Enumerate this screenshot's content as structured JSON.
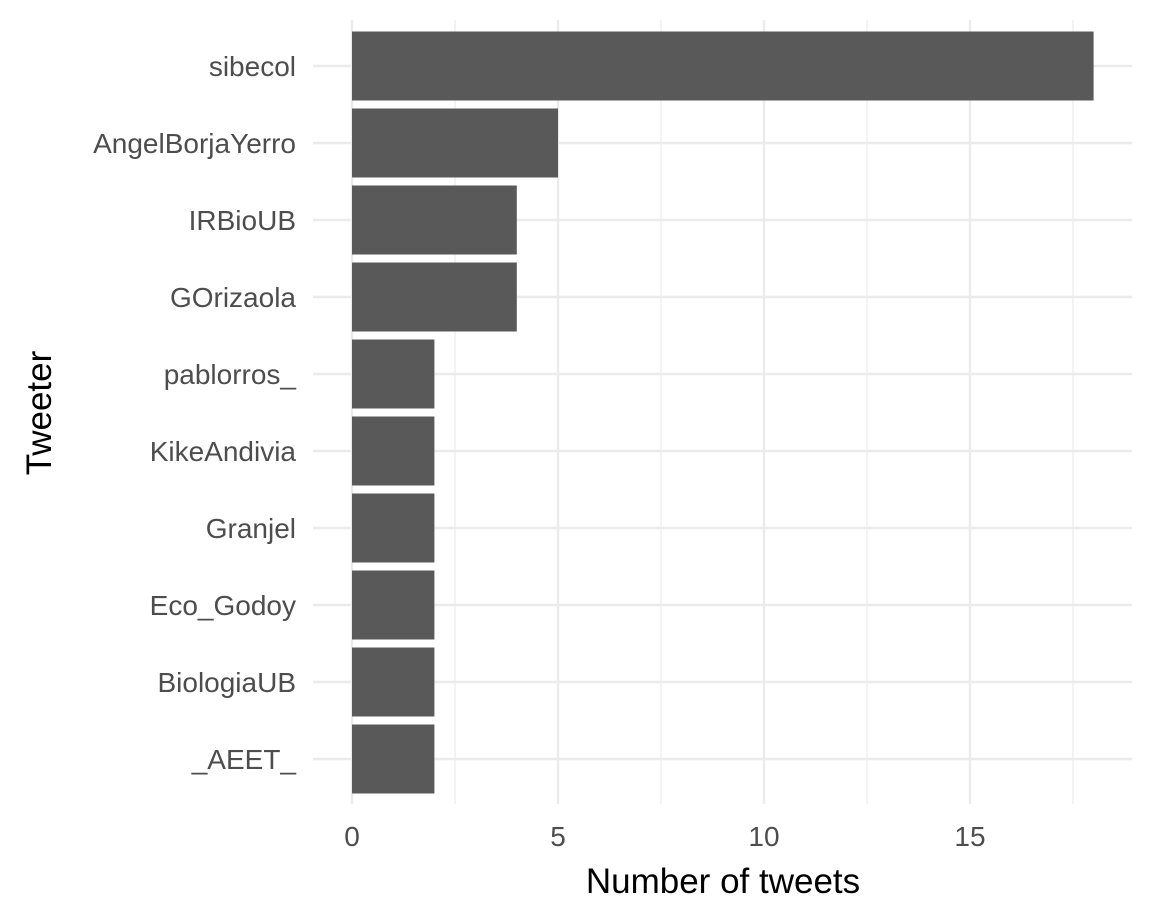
{
  "chart_data": {
    "type": "bar",
    "orientation": "horizontal",
    "categories": [
      "sibecol",
      "AngelBorjaYerro",
      "IRBioUB",
      "GOrizaola",
      "pablorros_",
      "KikeAndivia",
      "Granjel",
      "Eco_Godoy",
      "BiologiaUB",
      "_AEET_"
    ],
    "values": [
      18,
      5,
      4,
      4,
      2,
      2,
      2,
      2,
      2,
      2
    ],
    "xlabel": "Number of tweets",
    "ylabel": "Tweeter",
    "xlim": [
      0,
      18.9
    ],
    "x_ticks": [
      0,
      5,
      10,
      15
    ],
    "x_tick_labels": [
      "0",
      "5",
      "10",
      "15"
    ],
    "bar_color": "#595959",
    "grid_color": "#ebebeb",
    "grid": true,
    "legend": "none"
  }
}
